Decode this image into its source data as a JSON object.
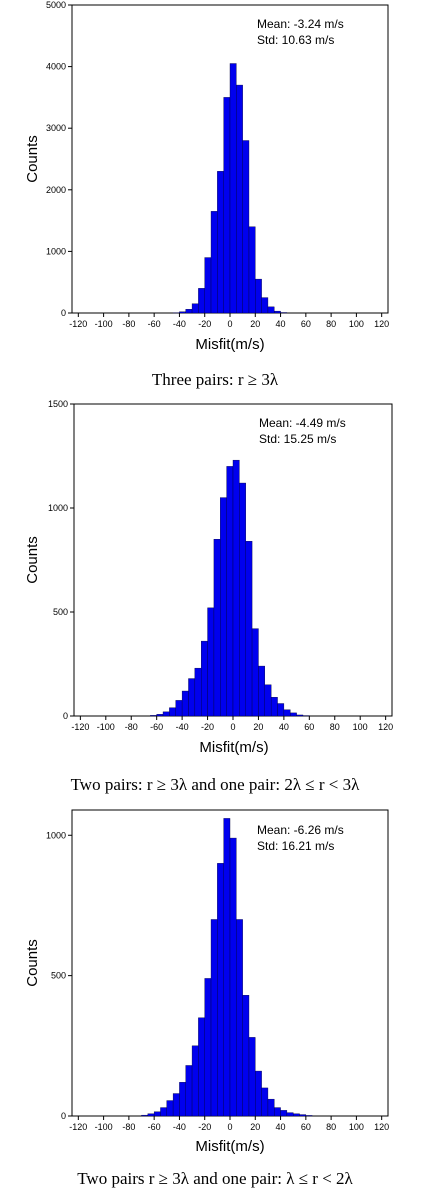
{
  "colors": {
    "bar": "#0000ee",
    "frame": "#000000",
    "background": "#ffffff"
  },
  "chart_data": [
    {
      "type": "bar",
      "xlabel": "Misfit(m/s)",
      "ylabel": "Counts",
      "xlim": [
        -125,
        125
      ],
      "ylim": [
        0,
        5000
      ],
      "xticks": [
        -120,
        -100,
        -80,
        -60,
        -40,
        -20,
        0,
        20,
        40,
        60,
        80,
        100,
        120
      ],
      "yticks": [
        0,
        1000,
        2000,
        3000,
        4000,
        5000
      ],
      "bin_width": 5,
      "bin_starts": [
        -45,
        -40,
        -35,
        -30,
        -25,
        -20,
        -15,
        -10,
        -5,
        0,
        5,
        10,
        15,
        20,
        25,
        30,
        35,
        40
      ],
      "values": [
        5,
        20,
        60,
        150,
        400,
        900,
        1650,
        2300,
        3500,
        4050,
        3700,
        2800,
        1400,
        550,
        250,
        100,
        30,
        8
      ],
      "annotation": {
        "mean": "Mean: -3.24 m/s",
        "std": "Std: 10.63 m/s"
      },
      "caption": "Three pairs:  r ≥ 3λ",
      "grid": false
    },
    {
      "type": "bar",
      "xlabel": "Misfit(m/s)",
      "ylabel": "Counts",
      "xlim": [
        -125,
        125
      ],
      "ylim": [
        0,
        1500
      ],
      "xticks": [
        -120,
        -100,
        -80,
        -60,
        -40,
        -20,
        0,
        20,
        40,
        60,
        80,
        100,
        120
      ],
      "yticks": [
        0,
        500,
        1000,
        1500
      ],
      "bin_width": 5,
      "bin_starts": [
        -65,
        -60,
        -55,
        -50,
        -45,
        -40,
        -35,
        -30,
        -25,
        -20,
        -15,
        -10,
        -5,
        0,
        5,
        10,
        15,
        20,
        25,
        30,
        35,
        40,
        45,
        50,
        55
      ],
      "values": [
        3,
        8,
        20,
        40,
        75,
        120,
        180,
        230,
        360,
        520,
        850,
        1050,
        1200,
        1230,
        1120,
        840,
        420,
        240,
        150,
        90,
        60,
        30,
        15,
        5,
        2
      ],
      "annotation": {
        "mean": "Mean: -4.49 m/s",
        "std": "Std: 15.25 m/s"
      },
      "caption": "Two pairs:  r ≥ 3λ   and one pair:  2λ ≤ r < 3λ",
      "grid": false
    },
    {
      "type": "bar",
      "xlabel": "Misfit(m/s)",
      "ylabel": "Counts",
      "xlim": [
        -125,
        125
      ],
      "ylim": [
        0,
        1090
      ],
      "xticks": [
        -120,
        -100,
        -80,
        -60,
        -40,
        -20,
        0,
        20,
        40,
        60,
        80,
        100,
        120
      ],
      "yticks": [
        0,
        500,
        1000
      ],
      "bin_width": 5,
      "bin_starts": [
        -70,
        -65,
        -60,
        -55,
        -50,
        -45,
        -40,
        -35,
        -30,
        -25,
        -20,
        -15,
        -10,
        -5,
        0,
        5,
        10,
        15,
        20,
        25,
        30,
        35,
        40,
        45,
        50,
        55,
        60
      ],
      "values": [
        3,
        8,
        15,
        30,
        55,
        80,
        120,
        180,
        250,
        350,
        490,
        700,
        900,
        1060,
        990,
        700,
        430,
        280,
        160,
        100,
        60,
        30,
        20,
        12,
        8,
        5,
        2
      ],
      "annotation": {
        "mean": "Mean: -6.26 m/s",
        "std": "Std: 16.21 m/s"
      },
      "caption": "Two pairs  r ≥ 3λ   and one pair:  λ ≤ r < 2λ",
      "grid": false
    }
  ]
}
